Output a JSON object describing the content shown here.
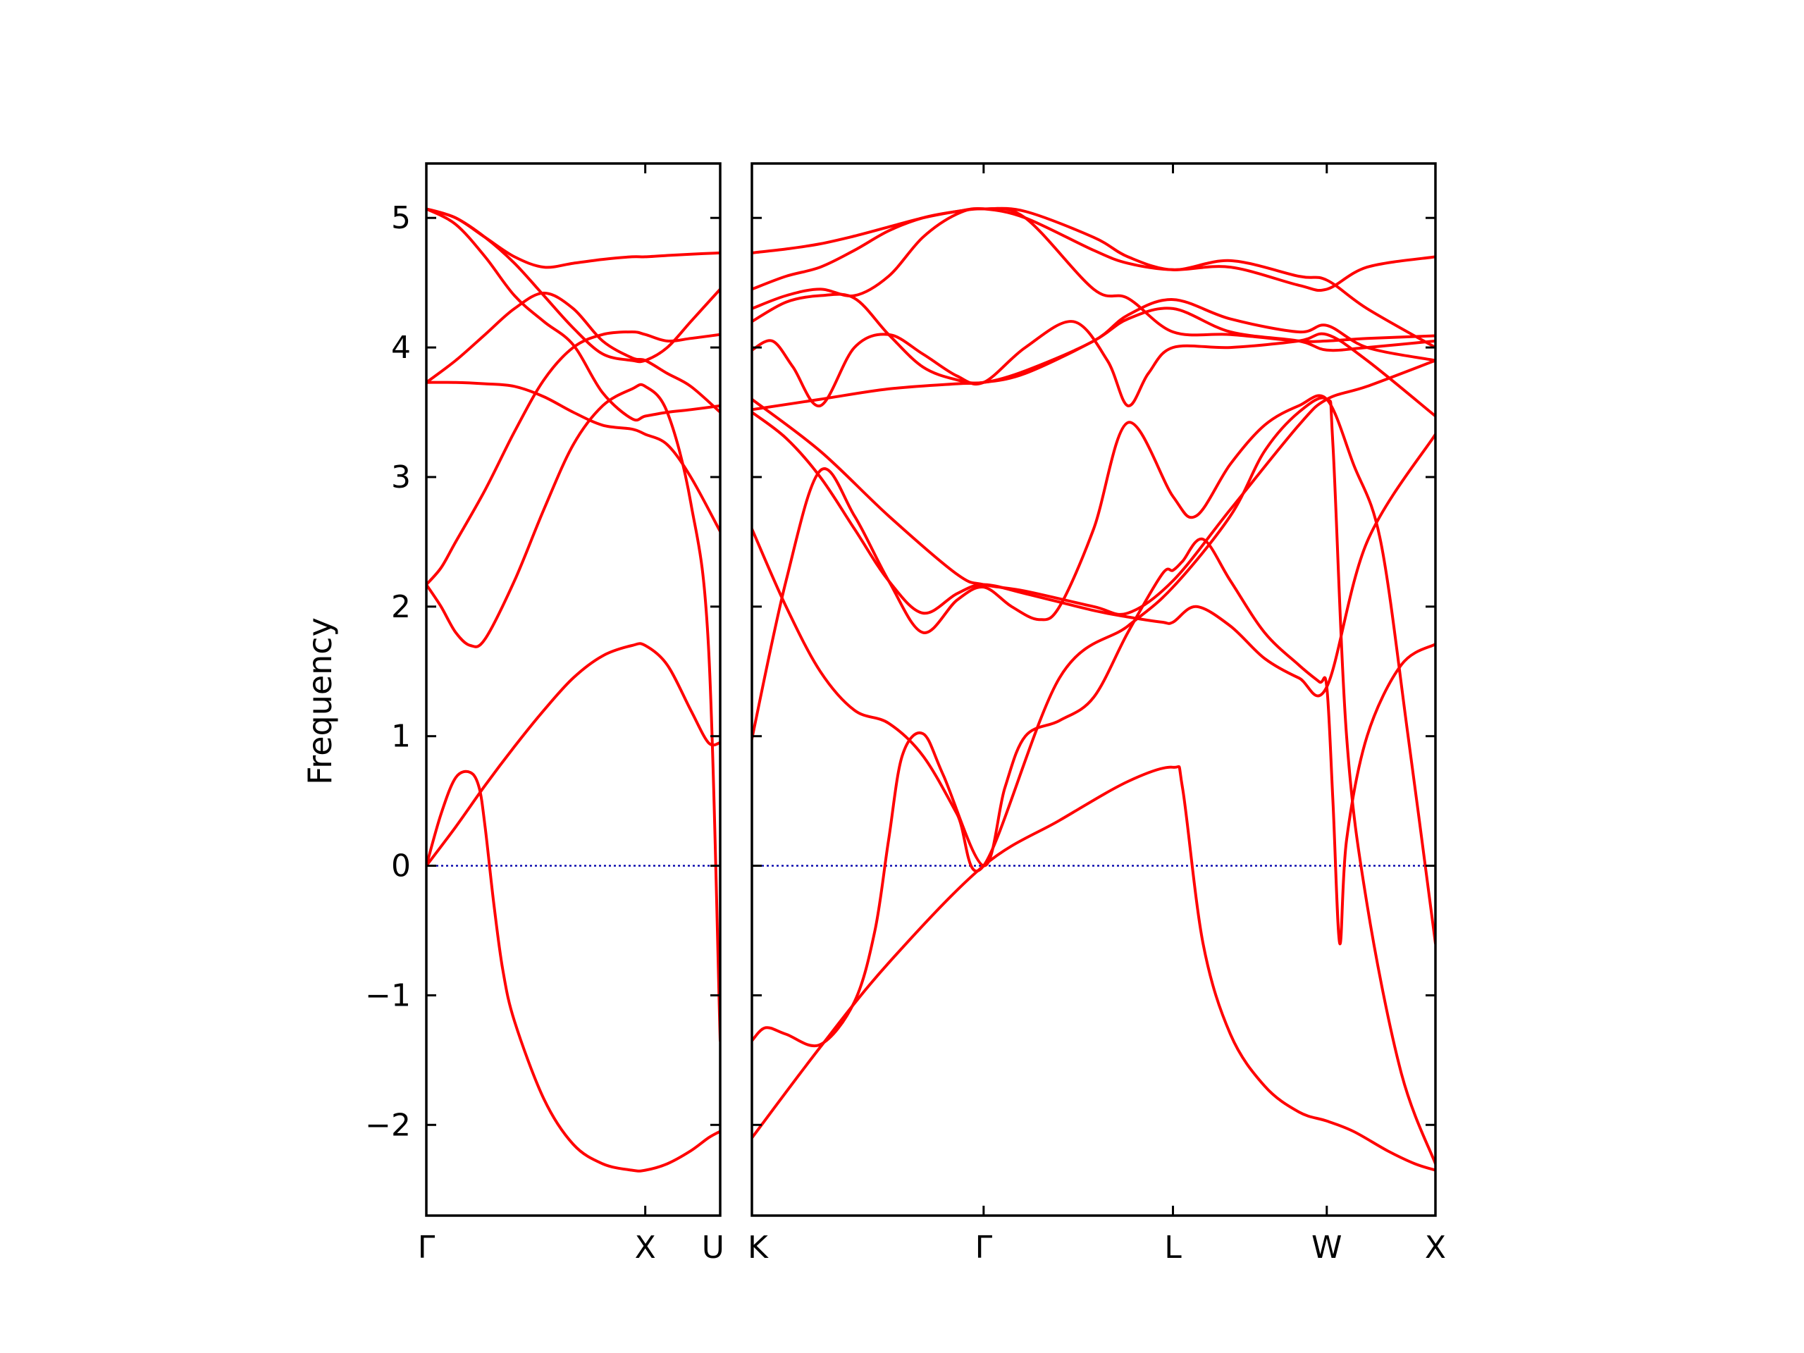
{
  "chart_data": {
    "type": "line",
    "ylabel": "Frequency",
    "xlabel": "",
    "ylim": [
      -2.7,
      5.42
    ],
    "yticks": [
      -2,
      -1,
      0,
      1,
      2,
      3,
      4,
      5
    ],
    "ytick_labels": [
      "−2",
      "−1",
      "0",
      "1",
      "2",
      "3",
      "4",
      "5"
    ],
    "grid": false,
    "colors": {
      "bands": "#ff0000",
      "zero_line": "#0000aa",
      "axes": "#000000"
    },
    "panels": [
      {
        "name": "Gamma-X-U",
        "xlim": [
          0,
          1
        ],
        "ticks": [
          {
            "x": 0,
            "label": "Γ"
          },
          {
            "x": 0.745,
            "label": "X"
          },
          {
            "x": 1,
            "label": "U"
          }
        ],
        "series": [
          {
            "x": [
              0,
              0.05,
              0.1,
              0.15,
              0.18,
              0.2,
              0.23,
              0.26,
              0.3,
              0.4,
              0.5,
              0.6,
              0.7,
              0.745,
              0.82,
              0.9,
              0.96,
              1.0
            ],
            "y": [
              0,
              0.4,
              0.68,
              0.72,
              0.6,
              0.3,
              -0.3,
              -0.8,
              -1.2,
              -1.8,
              -2.15,
              -2.3,
              -2.35,
              -2.35,
              -2.3,
              -2.2,
              -2.1,
              -2.05
            ]
          },
          {
            "x": [
              0,
              0.1,
              0.2,
              0.3,
              0.4,
              0.5,
              0.6,
              0.7,
              0.745,
              0.82,
              0.9,
              0.96,
              1.0
            ],
            "y": [
              0,
              0.3,
              0.62,
              0.92,
              1.2,
              1.45,
              1.62,
              1.7,
              1.7,
              1.55,
              1.2,
              0.95,
              0.95
            ]
          },
          {
            "x": [
              0,
              0.05,
              0.1,
              0.15,
              0.2,
              0.3,
              0.4,
              0.5,
              0.6,
              0.7,
              0.745,
              0.82,
              0.9,
              0.96,
              1.0
            ],
            "y": [
              2.17,
              2.0,
              1.8,
              1.7,
              1.75,
              2.2,
              2.75,
              3.25,
              3.55,
              3.68,
              3.7,
              3.5,
              2.8,
              1.7,
              -1.35
            ]
          },
          {
            "x": [
              0,
              0.05,
              0.1,
              0.2,
              0.3,
              0.4,
              0.5,
              0.6,
              0.7,
              0.745,
              0.82,
              0.9,
              1.0
            ],
            "y": [
              2.17,
              2.3,
              2.5,
              2.9,
              3.35,
              3.75,
              4.0,
              4.1,
              4.12,
              4.1,
              4.05,
              4.07,
              4.1
            ]
          },
          {
            "x": [
              0,
              0.1,
              0.2,
              0.3,
              0.4,
              0.5,
              0.6,
              0.7,
              0.745,
              0.82,
              0.9,
              1.0
            ],
            "y": [
              3.73,
              3.73,
              3.72,
              3.7,
              3.62,
              3.5,
              3.4,
              3.37,
              3.33,
              3.25,
              3.0,
              2.58
            ]
          },
          {
            "x": [
              0,
              0.1,
              0.2,
              0.3,
              0.4,
              0.5,
              0.6,
              0.7,
              0.745,
              0.82,
              0.9,
              1.0
            ],
            "y": [
              3.73,
              3.9,
              4.1,
              4.3,
              4.42,
              4.3,
              4.05,
              3.92,
              3.9,
              3.8,
              3.7,
              3.5
            ]
          },
          {
            "x": [
              0,
              0.1,
              0.2,
              0.3,
              0.4,
              0.5,
              0.6,
              0.7,
              0.745,
              0.82,
              0.9,
              1.0
            ],
            "y": [
              5.07,
              4.95,
              4.7,
              4.4,
              4.2,
              4.02,
              3.65,
              3.45,
              3.47,
              3.5,
              3.52,
              3.55
            ]
          },
          {
            "x": [
              0,
              0.1,
              0.2,
              0.3,
              0.4,
              0.5,
              0.6,
              0.7,
              0.745,
              0.82,
              0.9,
              1.0
            ],
            "y": [
              5.07,
              5.0,
              4.85,
              4.7,
              4.62,
              4.65,
              4.68,
              4.7,
              4.7,
              4.71,
              4.72,
              4.73
            ]
          },
          {
            "x": [
              0,
              0.1,
              0.2,
              0.3,
              0.4,
              0.5,
              0.6,
              0.7,
              0.745,
              0.82,
              0.9,
              1.0
            ],
            "y": [
              5.07,
              5.0,
              4.85,
              4.65,
              4.4,
              4.15,
              3.95,
              3.9,
              3.9,
              4.0,
              4.2,
              4.45
            ]
          }
        ]
      },
      {
        "name": "K-Gamma-L-W-X",
        "xlim": [
          0,
          1
        ],
        "ticks": [
          {
            "x": 0,
            "label": "K"
          },
          {
            "x": 0.339,
            "label": "Γ"
          },
          {
            "x": 0.616,
            "label": "L"
          },
          {
            "x": 0.841,
            "label": "W"
          },
          {
            "x": 1,
            "label": "X"
          }
        ],
        "series": [
          {
            "x": [
              0,
              0.1,
              0.2,
              0.339,
              0.45,
              0.55,
              0.616,
              0.63,
              0.66,
              0.7,
              0.75,
              0.8,
              0.841,
              0.88,
              0.93,
              0.97,
              1.0
            ],
            "y": [
              -2.1,
              -1.4,
              -0.75,
              0,
              0.35,
              0.65,
              0.76,
              0.6,
              -0.6,
              -1.3,
              -1.7,
              -1.9,
              -1.97,
              -2.05,
              -2.2,
              -2.3,
              -2.35
            ]
          },
          {
            "x": [
              0,
              0.02,
              0.05,
              0.1,
              0.15,
              0.18,
              0.2,
              0.22,
              0.25,
              0.28,
              0.339,
              0.37,
              0.4,
              0.45,
              0.5,
              0.55,
              0.6,
              0.616,
              0.63,
              0.66,
              0.7,
              0.75,
              0.8,
              0.83,
              0.841,
              0.85,
              0.86,
              0.87,
              0.9,
              0.95,
              1.0
            ],
            "y": [
              -1.35,
              -1.25,
              -1.3,
              -1.38,
              -1.05,
              -0.5,
              0.2,
              0.85,
              1.02,
              0.7,
              0,
              0.6,
              1.0,
              1.12,
              1.3,
              1.8,
              2.25,
              2.28,
              2.35,
              2.52,
              2.2,
              1.8,
              1.55,
              1.42,
              1.38,
              0.5,
              -0.6,
              0.2,
              1.0,
              1.55,
              1.71
            ]
          },
          {
            "x": [
              0,
              0.05,
              0.1,
              0.15,
              0.2,
              0.25,
              0.3,
              0.339,
              0.45,
              0.55,
              0.616,
              0.7,
              0.75,
              0.8,
              0.841,
              0.85,
              0.87,
              0.9,
              0.95,
              1.0
            ],
            "y": [
              2.6,
              2.0,
              1.5,
              1.2,
              1.1,
              0.85,
              0.4,
              0,
              1.45,
              1.85,
              2.15,
              2.7,
              3.2,
              3.5,
              3.6,
              3.25,
              1.0,
              -0.3,
              -1.6,
              -2.3
            ]
          },
          {
            "x": [
              0,
              0.05,
              0.1,
              0.15,
              0.2,
              0.25,
              0.3,
              0.339,
              0.38,
              0.42,
              0.45,
              0.5,
              0.55,
              0.616,
              0.65,
              0.7,
              0.75,
              0.8,
              0.841,
              0.88,
              0.92,
              0.96,
              1.0
            ],
            "y": [
              0.98,
              2.2,
              3.05,
              2.7,
              2.2,
              1.8,
              2.05,
              2.15,
              2.0,
              1.9,
              2.0,
              2.6,
              3.42,
              2.85,
              2.7,
              3.1,
              3.4,
              3.55,
              3.6,
              3.1,
              2.5,
              1.0,
              -0.6
            ]
          },
          {
            "x": [
              0,
              0.05,
              0.1,
              0.15,
              0.2,
              0.25,
              0.3,
              0.339,
              0.4,
              0.5,
              0.55,
              0.6,
              0.616,
              0.65,
              0.7,
              0.75,
              0.8,
              0.841,
              0.9,
              1.0
            ],
            "y": [
              3.5,
              3.3,
              3.0,
              2.6,
              2.2,
              1.95,
              2.1,
              2.17,
              2.1,
              1.97,
              1.92,
              1.88,
              1.88,
              2.0,
              1.85,
              1.6,
              1.45,
              1.38,
              2.5,
              3.33
            ]
          },
          {
            "x": [
              0,
              0.1,
              0.2,
              0.3,
              0.339,
              0.4,
              0.5,
              0.55,
              0.616,
              0.7,
              0.8,
              0.841,
              0.9,
              1.0
            ],
            "y": [
              3.6,
              3.2,
              2.7,
              2.25,
              2.17,
              2.12,
              2.0,
              1.95,
              2.2,
              2.75,
              3.4,
              3.6,
              3.7,
              3.9
            ]
          },
          {
            "x": [
              0,
              0.03,
              0.06,
              0.1,
              0.15,
              0.2,
              0.25,
              0.3,
              0.339,
              0.4,
              0.47,
              0.52,
              0.55,
              0.58,
              0.616,
              0.7,
              0.8,
              0.841,
              0.9,
              1.0
            ],
            "y": [
              3.98,
              4.05,
              3.85,
              3.55,
              4.0,
              4.1,
              3.95,
              3.78,
              3.73,
              4.0,
              4.2,
              3.9,
              3.55,
              3.8,
              4.0,
              4.0,
              4.05,
              4.1,
              3.9,
              3.47
            ]
          },
          {
            "x": [
              0,
              0.1,
              0.2,
              0.3,
              0.339,
              0.4,
              0.5,
              0.55,
              0.616,
              0.7,
              0.8,
              0.841,
              0.9,
              1.0
            ],
            "y": [
              3.52,
              3.6,
              3.68,
              3.72,
              3.73,
              3.8,
              4.05,
              4.22,
              4.3,
              4.12,
              4.05,
              3.98,
              4.0,
              4.05
            ]
          },
          {
            "x": [
              0,
              0.05,
              0.1,
              0.15,
              0.2,
              0.25,
              0.3,
              0.339,
              0.4,
              0.5,
              0.55,
              0.616,
              0.7,
              0.8,
              0.841,
              0.9,
              1.0
            ],
            "y": [
              4.2,
              4.35,
              4.4,
              4.38,
              4.1,
              3.85,
              3.75,
              3.73,
              3.82,
              4.05,
              4.25,
              4.37,
              4.22,
              4.12,
              4.17,
              4.0,
              3.9
            ]
          },
          {
            "x": [
              0,
              0.05,
              0.1,
              0.15,
              0.2,
              0.25,
              0.3,
              0.339,
              0.4,
              0.5,
              0.55,
              0.616,
              0.7,
              0.8,
              0.841,
              0.9,
              1.0
            ],
            "y": [
              4.3,
              4.4,
              4.45,
              4.4,
              4.55,
              4.85,
              5.03,
              5.07,
              5.0,
              4.45,
              4.38,
              4.12,
              4.1,
              4.05,
              4.05,
              4.07,
              4.09
            ]
          },
          {
            "x": [
              0,
              0.05,
              0.1,
              0.15,
              0.2,
              0.25,
              0.3,
              0.339,
              0.4,
              0.5,
              0.55,
              0.616,
              0.7,
              0.8,
              0.841,
              0.9,
              1.0
            ],
            "y": [
              4.45,
              4.55,
              4.62,
              4.75,
              4.9,
              5.0,
              5.05,
              5.07,
              5.0,
              4.75,
              4.65,
              4.6,
              4.62,
              4.48,
              4.45,
              4.62,
              4.7
            ]
          },
          {
            "x": [
              0,
              0.05,
              0.1,
              0.15,
              0.2,
              0.25,
              0.3,
              0.339,
              0.4,
              0.5,
              0.55,
              0.616,
              0.7,
              0.8,
              0.841,
              0.9,
              1.0
            ],
            "y": [
              4.73,
              4.76,
              4.8,
              4.86,
              4.93,
              5.0,
              5.05,
              5.07,
              5.05,
              4.85,
              4.7,
              4.6,
              4.67,
              4.55,
              4.52,
              4.3,
              4.0
            ]
          }
        ]
      }
    ]
  }
}
